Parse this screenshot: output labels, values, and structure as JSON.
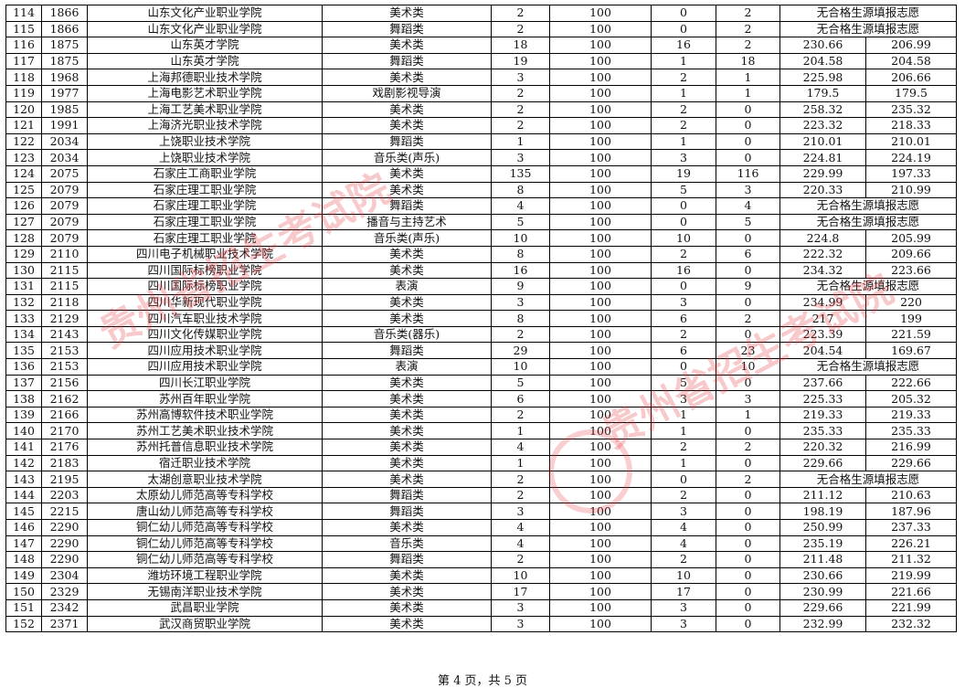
{
  "watermark": "贵州省招生考试院",
  "rows": [
    [
      "114",
      "1866",
      "山东文化产业职业学院",
      "美术类",
      "2",
      "100",
      "0",
      "2",
      "无合格生源填报志愿",
      ""
    ],
    [
      "115",
      "1866",
      "山东文化产业职业学院",
      "舞蹈类",
      "2",
      "100",
      "0",
      "2",
      "无合格生源填报志愿",
      ""
    ],
    [
      "116",
      "1875",
      "山东英才学院",
      "美术类",
      "18",
      "100",
      "16",
      "2",
      "230.66",
      "206.99"
    ],
    [
      "117",
      "1875",
      "山东英才学院",
      "舞蹈类",
      "19",
      "100",
      "1",
      "18",
      "204.58",
      "204.58"
    ],
    [
      "118",
      "1968",
      "上海邦德职业技术学院",
      "美术类",
      "3",
      "100",
      "2",
      "1",
      "225.98",
      "206.66"
    ],
    [
      "119",
      "1977",
      "上海电影艺术职业学院",
      "戏剧影视导演",
      "2",
      "100",
      "1",
      "1",
      "179.5",
      "179.5"
    ],
    [
      "120",
      "1985",
      "上海工艺美术职业学院",
      "美术类",
      "2",
      "100",
      "2",
      "0",
      "258.32",
      "235.32"
    ],
    [
      "121",
      "1991",
      "上海济光职业技术学院",
      "美术类",
      "2",
      "100",
      "2",
      "0",
      "223.32",
      "218.33"
    ],
    [
      "122",
      "2034",
      "上饶职业技术学院",
      "舞蹈类",
      "1",
      "100",
      "1",
      "0",
      "210.01",
      "210.01"
    ],
    [
      "123",
      "2034",
      "上饶职业技术学院",
      "音乐类(声乐)",
      "3",
      "100",
      "3",
      "0",
      "224.81",
      "224.19"
    ],
    [
      "124",
      "2075",
      "石家庄工商职业学院",
      "美术类",
      "135",
      "100",
      "19",
      "116",
      "229.99",
      "197.33"
    ],
    [
      "125",
      "2079",
      "石家庄理工职业学院",
      "美术类",
      "8",
      "100",
      "5",
      "3",
      "220.33",
      "210.99"
    ],
    [
      "126",
      "2079",
      "石家庄理工职业学院",
      "舞蹈类",
      "4",
      "100",
      "0",
      "4",
      "无合格生源填报志愿",
      ""
    ],
    [
      "127",
      "2079",
      "石家庄理工职业学院",
      "播音与主持艺术",
      "5",
      "100",
      "0",
      "5",
      "无合格生源填报志愿",
      ""
    ],
    [
      "128",
      "2079",
      "石家庄理工职业学院",
      "音乐类(声乐)",
      "10",
      "100",
      "10",
      "0",
      "224.8",
      "205.99"
    ],
    [
      "129",
      "2110",
      "四川电子机械职业技术学院",
      "美术类",
      "8",
      "100",
      "2",
      "6",
      "222.32",
      "209.66"
    ],
    [
      "130",
      "2115",
      "四川国际标榜职业学院",
      "美术类",
      "16",
      "100",
      "16",
      "0",
      "234.32",
      "223.66"
    ],
    [
      "131",
      "2115",
      "四川国际标榜职业学院",
      "表演",
      "9",
      "100",
      "0",
      "9",
      "无合格生源填报志愿",
      ""
    ],
    [
      "132",
      "2118",
      "四川华新现代职业学院",
      "美术类",
      "3",
      "100",
      "3",
      "0",
      "234.99",
      "220"
    ],
    [
      "133",
      "2129",
      "四川汽车职业技术学院",
      "美术类",
      "8",
      "100",
      "6",
      "2",
      "217",
      "199"
    ],
    [
      "134",
      "2143",
      "四川文化传媒职业学院",
      "音乐类(器乐)",
      "2",
      "100",
      "2",
      "0",
      "223.39",
      "221.59"
    ],
    [
      "135",
      "2153",
      "四川应用技术职业学院",
      "舞蹈类",
      "29",
      "100",
      "6",
      "23",
      "204.54",
      "169.67"
    ],
    [
      "136",
      "2153",
      "四川应用技术职业学院",
      "表演",
      "10",
      "100",
      "0",
      "10",
      "无合格生源填报志愿",
      ""
    ],
    [
      "137",
      "2156",
      "四川长江职业学院",
      "美术类",
      "5",
      "100",
      "5",
      "0",
      "237.66",
      "222.66"
    ],
    [
      "138",
      "2162",
      "苏州百年职业学院",
      "美术类",
      "6",
      "100",
      "3",
      "3",
      "225.33",
      "205.32"
    ],
    [
      "139",
      "2166",
      "苏州高博软件技术职业学院",
      "美术类",
      "2",
      "100",
      "1",
      "1",
      "219.33",
      "219.33"
    ],
    [
      "140",
      "2170",
      "苏州工艺美术职业技术学院",
      "美术类",
      "1",
      "100",
      "1",
      "0",
      "235.33",
      "235.33"
    ],
    [
      "141",
      "2176",
      "苏州托普信息职业技术学院",
      "美术类",
      "4",
      "100",
      "2",
      "2",
      "220.32",
      "216.99"
    ],
    [
      "142",
      "2183",
      "宿迁职业技术学院",
      "美术类",
      "1",
      "100",
      "1",
      "0",
      "229.66",
      "229.66"
    ],
    [
      "143",
      "2195",
      "太湖创意职业技术学院",
      "美术类",
      "2",
      "100",
      "0",
      "2",
      "无合格生源填报志愿",
      ""
    ],
    [
      "144",
      "2203",
      "太原幼儿师范高等专科学校",
      "舞蹈类",
      "2",
      "100",
      "2",
      "0",
      "211.12",
      "210.63"
    ],
    [
      "145",
      "2215",
      "唐山幼儿师范高等专科学校",
      "舞蹈类",
      "3",
      "100",
      "3",
      "0",
      "198.19",
      "187.96"
    ],
    [
      "146",
      "2290",
      "铜仁幼儿师范高等专科学校",
      "美术类",
      "4",
      "100",
      "4",
      "0",
      "250.99",
      "237.33"
    ],
    [
      "147",
      "2290",
      "铜仁幼儿师范高等专科学校",
      "音乐类",
      "4",
      "100",
      "4",
      "0",
      "235.19",
      "226.21"
    ],
    [
      "148",
      "2290",
      "铜仁幼儿师范高等专科学校",
      "舞蹈类",
      "2",
      "100",
      "2",
      "0",
      "211.48",
      "211.32"
    ],
    [
      "149",
      "2304",
      "潍坊环境工程职业学院",
      "美术类",
      "10",
      "100",
      "10",
      "0",
      "230.66",
      "219.99"
    ],
    [
      "150",
      "2329",
      "无锡南洋职业技术学院",
      "美术类",
      "17",
      "100",
      "17",
      "0",
      "230.99",
      "221.66"
    ],
    [
      "151",
      "2342",
      "武昌职业学院",
      "美术类",
      "3",
      "100",
      "3",
      "0",
      "229.66",
      "221.99"
    ],
    [
      "152",
      "2371",
      "武汉商贸职业学院",
      "美术类",
      "3",
      "100",
      "3",
      "0",
      "232.99",
      "232.32"
    ]
  ],
  "footer": "第 4 页，共 5 页"
}
